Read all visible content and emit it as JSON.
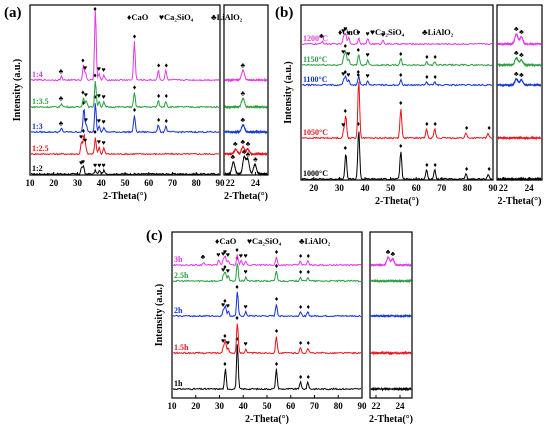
{
  "legend": {
    "items": [
      {
        "symbol": "♦",
        "label": "CaO"
      },
      {
        "symbol": "♥",
        "label": "Ca₂SiO₄"
      },
      {
        "symbol": "♣",
        "label": "LiAlO₂"
      }
    ]
  },
  "symbols": {
    "CaO": "♦",
    "Ca2SiO4": "♥",
    "LiAlO2": "♣"
  },
  "chart_data": [
    {
      "id": "a",
      "panel_label": "(a)",
      "type": "line",
      "xlabel": "2-Theta(°)",
      "ylabel": "Intensity (a.u.)",
      "xlim": [
        10,
        90
      ],
      "xticks": [
        10,
        20,
        30,
        40,
        50,
        60,
        70,
        80,
        90
      ],
      "inset_xlim": [
        21.5,
        25
      ],
      "inset_xticks": [
        22,
        24
      ],
      "legend_visible": true,
      "legend_position": "top",
      "series": [
        {
          "name": "1:2",
          "color": "#000000",
          "peaks": [
            [
              31.5,
              5,
              "Ca2SiO4"
            ],
            [
              32.3,
              6,
              "Ca2SiO4"
            ],
            [
              37.4,
              3,
              "Ca2SiO4"
            ],
            [
              39.2,
              3,
              "Ca2SiO4"
            ],
            [
              41,
              3,
              "Ca2SiO4"
            ]
          ],
          "inset_peaks": [
            [
              22.2,
              10,
              "LiAlO2"
            ],
            [
              23.1,
              14,
              "LiAlO2"
            ],
            [
              23.4,
              12,
              "LiAlO2"
            ],
            [
              24.0,
              8,
              "LiAlO2"
            ]
          ]
        },
        {
          "name": "1:2.5",
          "color": "#e8141b",
          "peaks": [
            [
              31.5,
              10,
              "Ca2SiO4"
            ],
            [
              32.5,
              15,
              "CaO"
            ],
            [
              33.2,
              7,
              "Ca2SiO4"
            ],
            [
              37.4,
              14,
              "CaO"
            ],
            [
              39,
              6,
              "Ca2SiO4"
            ],
            [
              41,
              5,
              "Ca2SiO4"
            ]
          ],
          "inset_peaks": [
            [
              22.4,
              4,
              "LiAlO2"
            ],
            [
              23.0,
              6,
              "LiAlO2"
            ],
            [
              23.4,
              4,
              "LiAlO2"
            ]
          ]
        },
        {
          "name": "1:3",
          "color": "#1233d8",
          "peaks": [
            [
              23,
              3,
              "LiAlO2"
            ],
            [
              32.5,
              20,
              "CaO"
            ],
            [
              33.5,
              6,
              "Ca2SiO4"
            ],
            [
              37.4,
              25,
              "CaO"
            ],
            [
              39,
              5,
              "Ca2SiO4"
            ],
            [
              41,
              4,
              "Ca2SiO4"
            ],
            [
              54,
              14,
              "CaO"
            ],
            [
              64.2,
              6,
              "CaO"
            ],
            [
              67.4,
              5,
              "CaO"
            ]
          ],
          "inset_peaks": [
            [
              23.0,
              6,
              "LiAlO2"
            ]
          ]
        },
        {
          "name": "1:3.5",
          "color": "#2a9e3e",
          "peaks": [
            [
              23,
              3,
              "LiAlO2"
            ],
            [
              32.3,
              8,
              "CaO"
            ],
            [
              33.5,
              6,
              "Ca2SiO4"
            ],
            [
              37.4,
              22,
              "CaO"
            ],
            [
              39,
              5,
              "Ca2SiO4"
            ],
            [
              41,
              4,
              "Ca2SiO4"
            ],
            [
              54,
              12,
              "CaO"
            ],
            [
              64.2,
              5,
              "CaO"
            ],
            [
              67.4,
              5,
              "CaO"
            ]
          ],
          "inset_peaks": [
            [
              23.0,
              7,
              "LiAlO2"
            ]
          ]
        },
        {
          "name": "1:4",
          "color": "#e239e6",
          "peaks": [
            [
              23,
              3,
              "LiAlO2"
            ],
            [
              32.3,
              12,
              "CaO"
            ],
            [
              33.2,
              6,
              "Ca2SiO4"
            ],
            [
              37.4,
              60,
              "CaO"
            ],
            [
              39,
              5,
              "Ca2SiO4"
            ],
            [
              41,
              4,
              "Ca2SiO4"
            ],
            [
              54,
              32,
              "CaO"
            ],
            [
              64.2,
              8,
              "CaO"
            ],
            [
              67.4,
              8,
              "CaO"
            ]
          ],
          "inset_peaks": [
            [
              23.0,
              8,
              "LiAlO2"
            ]
          ]
        }
      ]
    },
    {
      "id": "b",
      "panel_label": "(b)",
      "type": "line",
      "xlabel": "2-Theta(°)",
      "ylabel": "Intensity (a.u.)",
      "xlim": [
        15,
        90
      ],
      "xticks": [
        20,
        30,
        40,
        50,
        60,
        70,
        80,
        90
      ],
      "inset_xlim": [
        21.5,
        25
      ],
      "inset_xticks": [
        22,
        24
      ],
      "legend_visible": true,
      "legend_position": "top",
      "series": [
        {
          "name": "1000°C",
          "color": "#000000",
          "peaks": [
            [
              32.3,
              26,
              "CaO"
            ],
            [
              37.4,
              50,
              "CaO"
            ],
            [
              54,
              28,
              "CaO"
            ],
            [
              64.2,
              9,
              "CaO"
            ],
            [
              67.4,
              9,
              "CaO"
            ],
            [
              79.7,
              5,
              "CaO"
            ],
            [
              88.5,
              5,
              "CaO"
            ]
          ],
          "inset_peaks": []
        },
        {
          "name": "1050°C",
          "color": "#e8141b",
          "peaks": [
            [
              31.5,
              8,
              "Ca2SiO4"
            ],
            [
              32.3,
              22,
              "CaO"
            ],
            [
              37.4,
              58,
              "CaO"
            ],
            [
              54,
              30,
              "CaO"
            ],
            [
              64.2,
              9,
              "CaO"
            ],
            [
              67.4,
              9,
              "CaO"
            ],
            [
              79.7,
              5,
              "CaO"
            ],
            [
              88.5,
              5,
              "CaO"
            ]
          ],
          "inset_peaks": []
        },
        {
          "name": "1100°C",
          "color": "#1233d8",
          "peaks": [
            [
              31.5,
              6,
              "Ca2SiO4"
            ],
            [
              32.3,
              8,
              "CaO"
            ],
            [
              33.5,
              5,
              "Ca2SiO4"
            ],
            [
              37.4,
              8,
              "CaO"
            ],
            [
              41,
              4,
              "Ca2SiO4"
            ],
            [
              54,
              5,
              "CaO"
            ],
            [
              64.2,
              3,
              "CaO"
            ],
            [
              67.4,
              3,
              "CaO"
            ]
          ],
          "inset_peaks": [
            [
              23.0,
              6,
              "LiAlO2"
            ],
            [
              23.4,
              5,
              "LiAlO2"
            ]
          ]
        },
        {
          "name": "1150°C",
          "color": "#2a9e3e",
          "peaks": [
            [
              31.5,
              8,
              "Ca2SiO4"
            ],
            [
              32.3,
              14,
              "CaO"
            ],
            [
              33.5,
              6,
              "Ca2SiO4"
            ],
            [
              37.4,
              10,
              "CaO"
            ],
            [
              41,
              5,
              "Ca2SiO4"
            ],
            [
              54,
              6,
              "CaO"
            ],
            [
              64.2,
              3,
              "CaO"
            ],
            [
              67.4,
              3,
              "CaO"
            ]
          ],
          "inset_peaks": [
            [
              23.0,
              7,
              "LiAlO2"
            ],
            [
              23.4,
              5,
              "LiAlO2"
            ]
          ]
        },
        {
          "name": "1200°C",
          "color": "#e239e6",
          "peaks": [
            [
              23,
              3,
              "LiAlO2"
            ],
            [
              31.5,
              8,
              "Ca2SiO4"
            ],
            [
              32.3,
              10,
              "Ca2SiO4"
            ],
            [
              33.5,
              6,
              "Ca2SiO4"
            ],
            [
              37.4,
              6,
              "Ca2SiO4"
            ],
            [
              41,
              5,
              "Ca2SiO4"
            ],
            [
              47,
              4,
              "Ca2SiO4"
            ]
          ],
          "inset_peaks": [
            [
              23.0,
              10,
              "LiAlO2"
            ],
            [
              23.4,
              7,
              "LiAlO2"
            ]
          ]
        }
      ]
    },
    {
      "id": "c",
      "panel_label": "(c)",
      "type": "line",
      "xlabel": "2-Theta(°)",
      "ylabel": "Intensity (a.u.)",
      "xlim": [
        10,
        90
      ],
      "xticks": [
        10,
        20,
        30,
        40,
        50,
        60,
        70,
        80,
        90
      ],
      "inset_xlim": [
        21.5,
        25
      ],
      "inset_xticks": [
        22,
        24
      ],
      "legend_visible": true,
      "legend_position": "top",
      "series": [
        {
          "name": "1h",
          "color": "#000000",
          "peaks": [
            [
              32.3,
              20,
              "CaO"
            ],
            [
              37.4,
              45,
              "CaO"
            ],
            [
              54,
              20,
              "CaO"
            ],
            [
              64.2,
              7,
              "CaO"
            ],
            [
              67.4,
              7,
              "CaO"
            ]
          ],
          "inset_peaks": []
        },
        {
          "name": "1.5h",
          "color": "#e8141b",
          "peaks": [
            [
              31.5,
              7,
              "Ca2SiO4"
            ],
            [
              32.3,
              12,
              "CaO"
            ],
            [
              33.5,
              5,
              "Ca2SiO4"
            ],
            [
              37.4,
              30,
              "CaO"
            ],
            [
              41,
              4,
              "Ca2SiO4"
            ],
            [
              54,
              17,
              "CaO"
            ],
            [
              64.2,
              5,
              "CaO"
            ],
            [
              67.4,
              5,
              "CaO"
            ]
          ],
          "inset_peaks": []
        },
        {
          "name": "2h",
          "color": "#1233d8",
          "peaks": [
            [
              31.5,
              6,
              "Ca2SiO4"
            ],
            [
              32.3,
              10,
              "CaO"
            ],
            [
              33.5,
              5,
              "Ca2SiO4"
            ],
            [
              37.4,
              24,
              "CaO"
            ],
            [
              41,
              4,
              "Ca2SiO4"
            ],
            [
              54,
              12,
              "CaO"
            ],
            [
              64.2,
              4,
              "CaO"
            ],
            [
              67.4,
              4,
              "CaO"
            ]
          ],
          "inset_peaks": []
        },
        {
          "name": "2.5h",
          "color": "#2a9e3e",
          "peaks": [
            [
              31.5,
              6,
              "Ca2SiO4"
            ],
            [
              32.3,
              9,
              "CaO"
            ],
            [
              33.5,
              5,
              "Ca2SiO4"
            ],
            [
              37.4,
              18,
              "CaO"
            ],
            [
              41,
              4,
              "Ca2SiO4"
            ],
            [
              54,
              10,
              "CaO"
            ],
            [
              64.2,
              4,
              "CaO"
            ],
            [
              67.4,
              4,
              "CaO"
            ]
          ],
          "inset_peaks": []
        },
        {
          "name": "3h",
          "color": "#e239e6",
          "peaks": [
            [
              23,
              3,
              "LiAlO2"
            ],
            [
              29.5,
              5,
              "Ca2SiO4"
            ],
            [
              31.5,
              6,
              "Ca2SiO4"
            ],
            [
              32.3,
              8,
              "Ca2SiO4"
            ],
            [
              33.5,
              5,
              "Ca2SiO4"
            ],
            [
              37.4,
              10,
              "CaO"
            ],
            [
              39,
              4,
              "Ca2SiO4"
            ],
            [
              41,
              4,
              "Ca2SiO4"
            ],
            [
              54,
              8,
              "CaO"
            ],
            [
              64.2,
              4,
              "CaO"
            ],
            [
              67.4,
              4,
              "CaO"
            ]
          ],
          "inset_peaks": [
            [
              23.0,
              8,
              "LiAlO2"
            ],
            [
              23.4,
              6,
              "LiAlO2"
            ]
          ]
        }
      ]
    }
  ]
}
